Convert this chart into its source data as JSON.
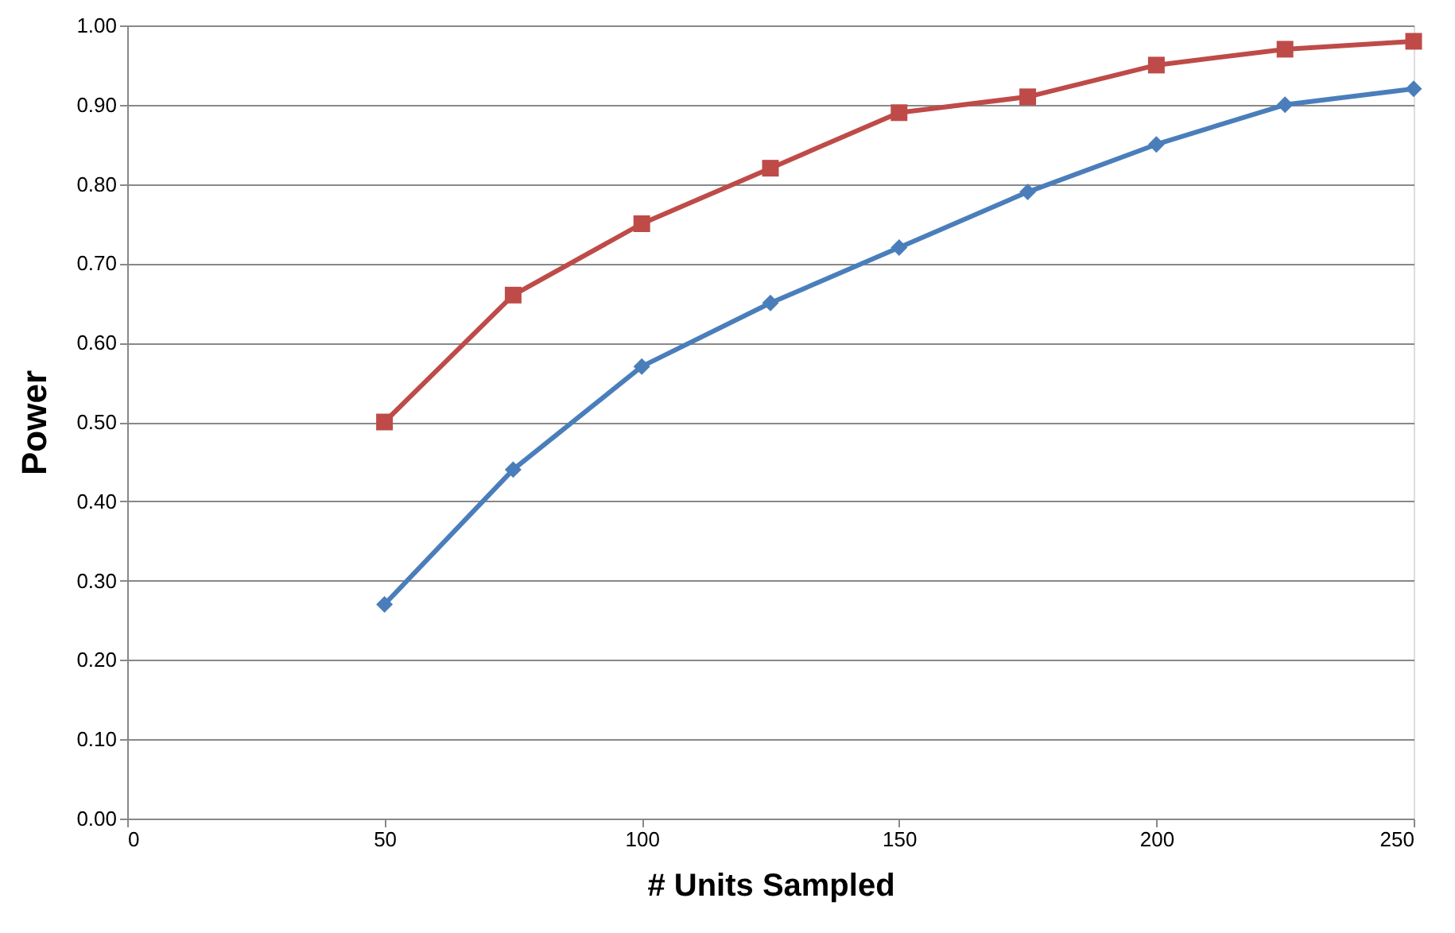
{
  "chart_data": {
    "type": "line",
    "xlabel": "# Units Sampled",
    "ylabel": "Power",
    "x": [
      50,
      75,
      100,
      125,
      150,
      175,
      200,
      225,
      250
    ],
    "series": [
      {
        "color": "#4a7ebb",
        "marker": "diamond",
        "values": [
          0.27,
          0.44,
          0.57,
          0.65,
          0.72,
          0.79,
          0.85,
          0.9,
          0.92
        ]
      },
      {
        "color": "#be4b48",
        "marker": "square",
        "values": [
          0.5,
          0.66,
          0.75,
          0.82,
          0.89,
          0.91,
          0.95,
          0.97,
          0.98
        ]
      }
    ],
    "xlim": [
      0,
      250
    ],
    "xticks": [
      0,
      50,
      100,
      150,
      200,
      250
    ],
    "ylim": [
      0,
      1
    ],
    "yticks": [
      {
        "value": 0,
        "label": "0.00"
      },
      {
        "value": 0.1,
        "label": "0.10"
      },
      {
        "value": 0.2,
        "label": "0.20"
      },
      {
        "value": 0.3,
        "label": "0.30"
      },
      {
        "value": 0.4,
        "label": "0.40"
      },
      {
        "value": 0.5,
        "label": "0.50"
      },
      {
        "value": 0.6,
        "label": "0.60"
      },
      {
        "value": 0.7,
        "label": "0.70"
      },
      {
        "value": 0.8,
        "label": "0.80"
      },
      {
        "value": 0.9,
        "label": "0.90"
      },
      {
        "value": 1.0,
        "label": "1.00"
      }
    ],
    "grid": "y",
    "line_style": "solid"
  }
}
